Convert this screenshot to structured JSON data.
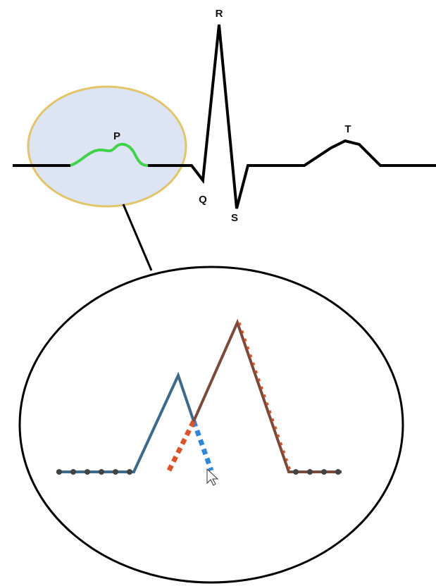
{
  "waves": [
    {
      "label": "R"
    },
    {
      "label": "P"
    },
    {
      "label": "Q"
    },
    {
      "label": "S"
    },
    {
      "label": "T"
    }
  ]
}
